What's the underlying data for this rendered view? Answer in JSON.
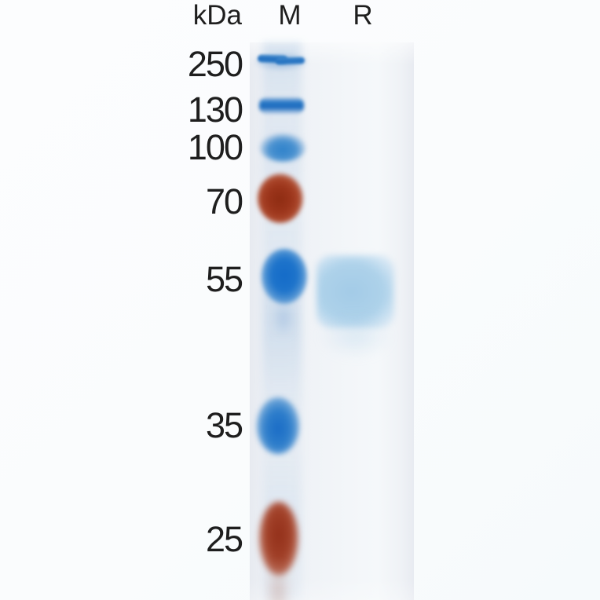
{
  "header": {
    "unit": "kDa",
    "lane_marker": "M",
    "lane_sample": "R"
  },
  "markers": [
    {
      "kda": "250",
      "stain": "blue",
      "color": "#1d6bbd"
    },
    {
      "kda": "130",
      "stain": "blue",
      "color": "#1a69bc"
    },
    {
      "kda": "100",
      "stain": "blue",
      "color": "#2f82cb"
    },
    {
      "kda": "70",
      "stain": "red",
      "color": "#9c351b"
    },
    {
      "kda": "55",
      "stain": "blue",
      "color": "#146bc8"
    },
    {
      "kda": "35",
      "stain": "blue",
      "color": "#1a6cc6"
    },
    {
      "kda": "25",
      "stain": "red",
      "color": "#a03f27"
    }
  ],
  "sample_band": {
    "lane": "R",
    "color": "#a8cee8",
    "appearance": "diffuse"
  },
  "colors": {
    "page_background": "#fbfcfd",
    "gel_background": "#eef1f6",
    "label_text": "#1e1e1e"
  }
}
